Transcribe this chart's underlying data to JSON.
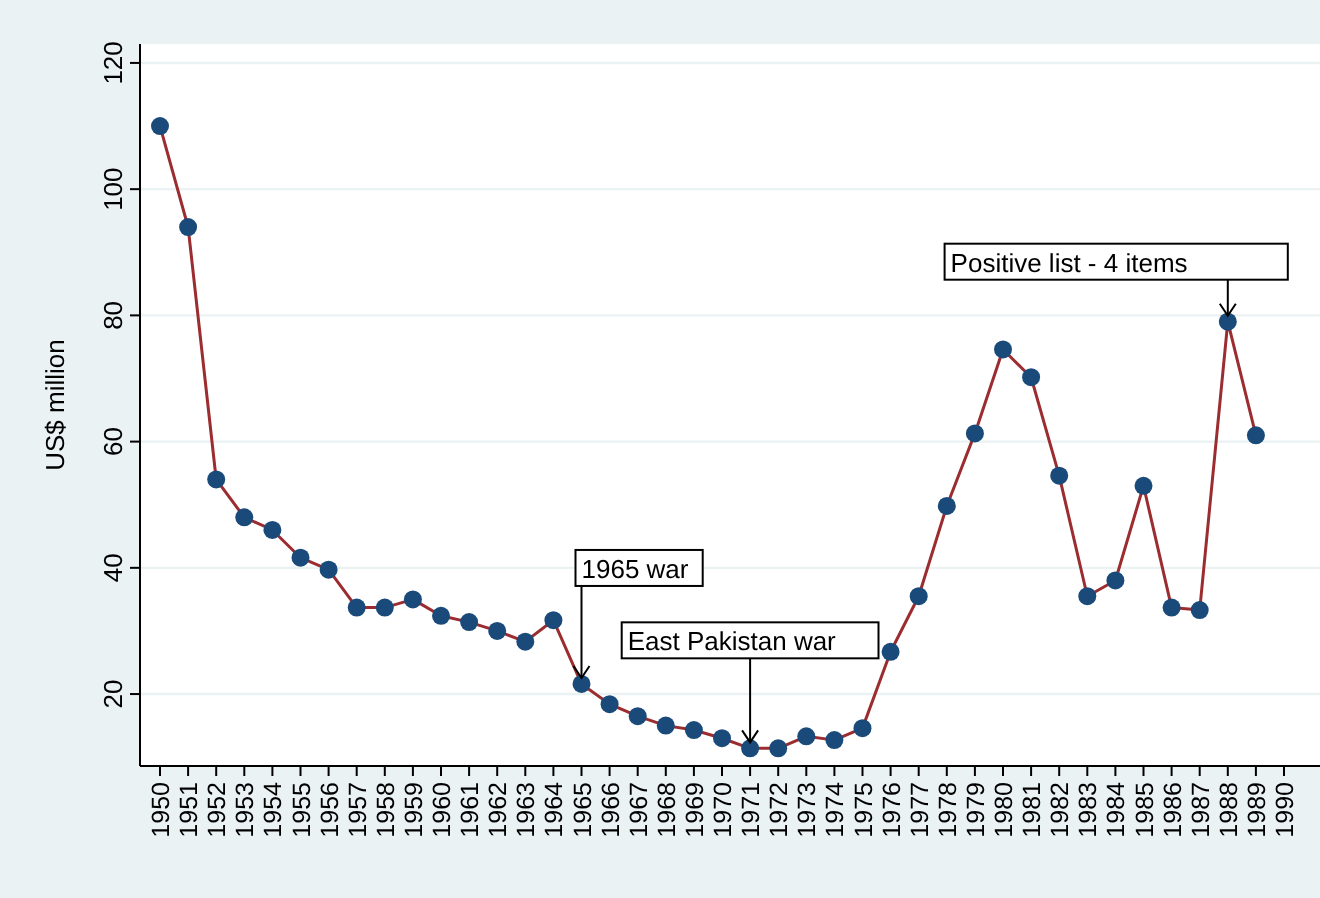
{
  "chart_data": {
    "type": "line",
    "ylabel": "US$ million",
    "categories": [
      "1950",
      "1951",
      "1952",
      "1953",
      "1954",
      "1955",
      "1956",
      "1957",
      "1958",
      "1959",
      "1960",
      "1961",
      "1962",
      "1963",
      "1964",
      "1965",
      "1966",
      "1967",
      "1968",
      "1969",
      "1970",
      "1971",
      "1972",
      "1973",
      "1974",
      "1975",
      "1976",
      "1977",
      "1978",
      "1979",
      "1980",
      "1981",
      "1982",
      "1983",
      "1984",
      "1985",
      "1986",
      "1987",
      "1988",
      "1989",
      "1990"
    ],
    "series": [
      {
        "color": "#9b2d30",
        "values": [
          110,
          94,
          54,
          48,
          46,
          41.6,
          39.7,
          33.7,
          33.7,
          35,
          32.4,
          31.4,
          30,
          28.3,
          31.7,
          21.6,
          18.4,
          16.5,
          15,
          14.3,
          13,
          11.4,
          11.4,
          13.3,
          12.7,
          14.6,
          26.7,
          35.5,
          49.8,
          61.3,
          74.6,
          70.2,
          54.6,
          35.5,
          38,
          53,
          33.7,
          33.3,
          79,
          61,
          null
        ]
      }
    ],
    "marker": "circle",
    "line_style": "solid",
    "ylim": [
      8.6,
      123
    ],
    "yticks": [
      20,
      40,
      60,
      80,
      100,
      120
    ],
    "grid": "y",
    "annotations": [
      {
        "text": "1965 war",
        "x": "1965",
        "y": 21.6
      },
      {
        "text": "East Pakistan war",
        "x": "1971",
        "y": 11.4
      },
      {
        "text": "Positive list - 4 items",
        "x": "1988",
        "y": 79
      }
    ]
  }
}
